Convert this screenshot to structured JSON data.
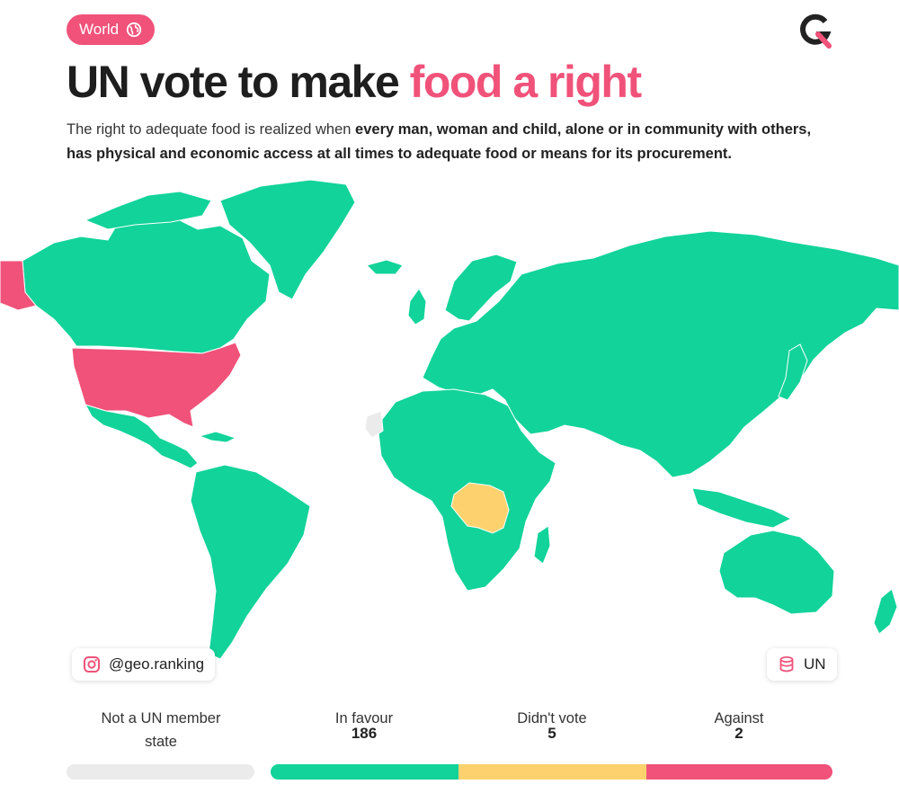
{
  "header": {
    "tag_label": "World",
    "tag_icon": "globe-icon",
    "logo_icon": "geo-ranking-logo",
    "title_main": "UN vote to make ",
    "title_highlight": "food a right",
    "description_plain": "The right to adequate food is realized when ",
    "description_bold": "every man, woman and child, alone or in community with others, has physical and economic access at all times to adequate food or means for its procurement."
  },
  "credits": {
    "instagram_handle": "@geo.ranking",
    "instagram_icon": "instagram-icon",
    "source_label": "UN",
    "source_icon": "database-icon"
  },
  "legend": {
    "not_member": {
      "label": "Not a UN member state",
      "color": "#ebebeb"
    },
    "in_favour": {
      "label": "In favour",
      "value": "186",
      "color": "#12d39a"
    },
    "didnt_vote": {
      "label": "Didn't vote",
      "value": "5",
      "color": "#fdd26e"
    },
    "against": {
      "label": "Against",
      "value": "2",
      "color": "#f0527a"
    }
  },
  "colors": {
    "accent": "#f0527a",
    "in_favour": "#12d39a",
    "didnt_vote": "#fdd26e",
    "against": "#f0527a",
    "not_member": "#ebebeb"
  }
}
